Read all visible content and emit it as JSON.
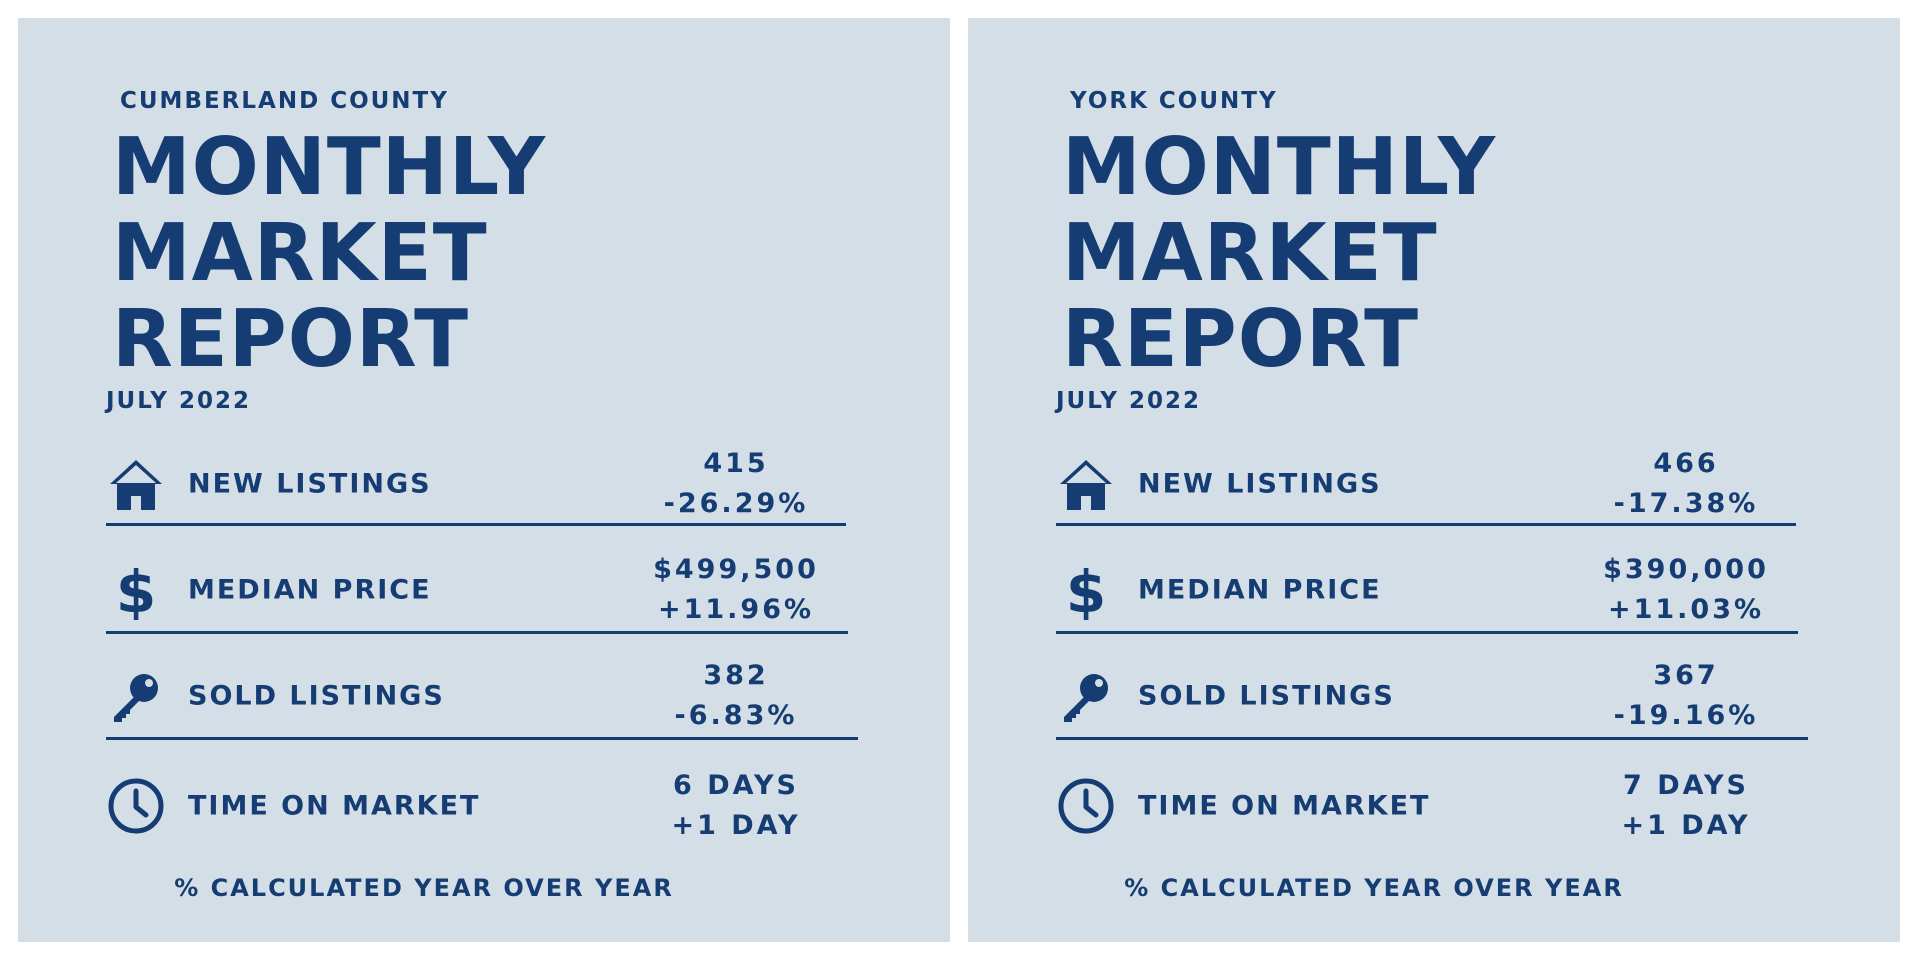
{
  "colors": {
    "background": "#d3dee6",
    "text": "#153c73"
  },
  "panels": [
    {
      "county": "CUMBERLAND COUNTY",
      "headline": [
        "MONTHLY",
        "MARKET",
        "REPORT"
      ],
      "date": "JULY 2022",
      "metrics": [
        {
          "icon": "house-icon",
          "label": "NEW LISTINGS",
          "value": "415",
          "change": "-26.29%"
        },
        {
          "icon": "dollar-icon",
          "label": "MEDIAN PRICE",
          "value": "$499,500",
          "change": "+11.96%"
        },
        {
          "icon": "key-icon",
          "label": "SOLD LISTINGS",
          "value": "382",
          "change": "-6.83%"
        },
        {
          "icon": "clock-icon",
          "label": "TIME ON MARKET",
          "value": "6 DAYS",
          "change": "+1 DAY"
        }
      ],
      "footnote": "% CALCULATED YEAR OVER YEAR"
    },
    {
      "county": "YORK COUNTY",
      "headline": [
        "MONTHLY",
        "MARKET",
        "REPORT"
      ],
      "date": "JULY 2022",
      "metrics": [
        {
          "icon": "house-icon",
          "label": "NEW LISTINGS",
          "value": "466",
          "change": "-17.38%"
        },
        {
          "icon": "dollar-icon",
          "label": "MEDIAN PRICE",
          "value": "$390,000",
          "change": "+11.03%"
        },
        {
          "icon": "key-icon",
          "label": "SOLD LISTINGS",
          "value": "367",
          "change": "-19.16%"
        },
        {
          "icon": "clock-icon",
          "label": "TIME ON MARKET",
          "value": "7 DAYS",
          "change": "+1 DAY"
        }
      ],
      "footnote": "% CALCULATED YEAR OVER YEAR"
    }
  ]
}
